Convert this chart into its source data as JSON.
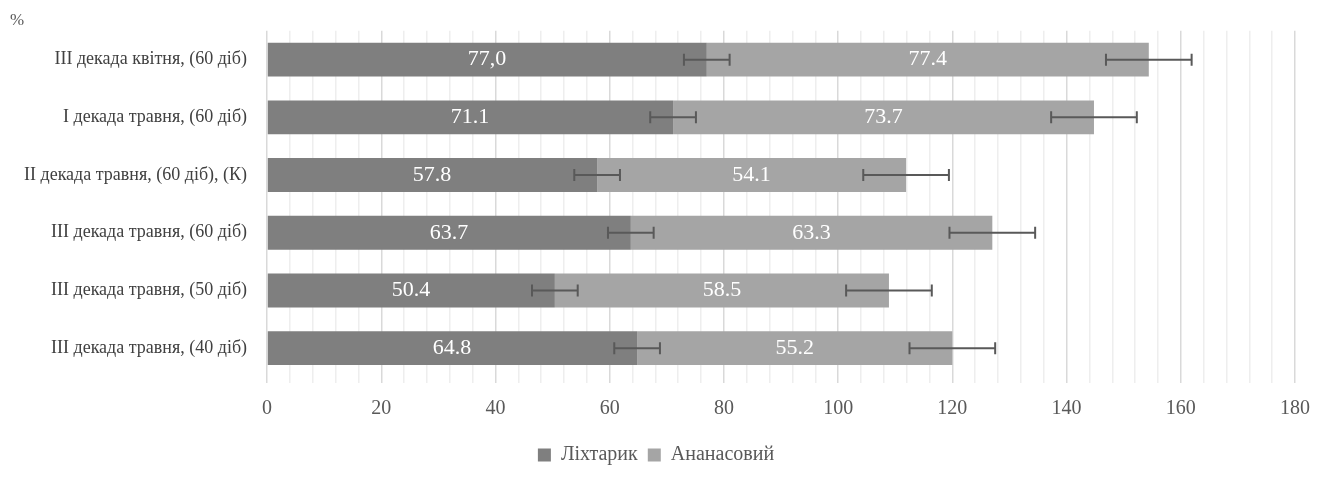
{
  "chart_data": {
    "type": "bar",
    "orientation": "horizontal",
    "stacked": true,
    "categories": [
      "III декада квітня, (60 діб)",
      "I декада травня, (60 діб)",
      "II декада травня, (60 діб), (К)",
      "III декада травня, (60 діб)",
      "III декада травня, (50 діб)",
      "III декада травня, (40 діб)"
    ],
    "series": [
      {
        "name": "Ліхтарик",
        "color": "#7f7f7f",
        "values": [
          77.0,
          71.1,
          57.8,
          63.7,
          50.4,
          64.8
        ],
        "value_labels": [
          "77,0",
          "71.1",
          "57.8",
          "63.7",
          "50.4",
          "64.8"
        ],
        "errors": [
          4,
          4,
          4,
          4,
          4,
          4
        ]
      },
      {
        "name": "Ананасовий",
        "color": "#a5a5a5",
        "values": [
          77.4,
          73.7,
          54.1,
          63.3,
          58.5,
          55.2
        ],
        "value_labels": [
          "77.4",
          "73.7",
          "54.1",
          "63.3",
          "58.5",
          "55.2"
        ],
        "errors": [
          7.5,
          7.5,
          7.5,
          7.5,
          7.5,
          7.5
        ]
      }
    ],
    "xlim": [
      0,
      180
    ],
    "xticks": [
      0,
      {
        "value": 4,
        "label": null
      },
      {
        "value": 8,
        "label": null
      },
      {
        "value": 12,
        "label": null
      },
      {
        "value": 16,
        "label": null
      },
      20,
      {
        "value": 24,
        "label": null
      },
      {
        "value": 28,
        "label": null
      },
      {
        "value": 32,
        "label": null
      },
      {
        "value": 36,
        "label": null
      },
      40,
      {
        "value": 44,
        "label": null
      },
      {
        "value": 48,
        "label": null
      },
      {
        "value": 52,
        "label": null
      },
      {
        "value": 56,
        "label": null
      },
      60,
      {
        "value": 64,
        "label": null
      },
      {
        "value": 68,
        "label": null
      },
      {
        "value": 72,
        "label": null
      },
      {
        "value": 76,
        "label": null
      },
      80,
      {
        "value": 84,
        "label": null
      },
      {
        "value": 88,
        "label": null
      },
      {
        "value": 92,
        "label": null
      },
      {
        "value": 96,
        "label": null
      },
      100,
      {
        "value": 104,
        "label": null
      },
      {
        "value": 108,
        "label": null
      },
      {
        "value": 112,
        "label": null
      },
      {
        "value": 116,
        "label": null
      },
      120,
      {
        "value": 124,
        "label": null
      },
      {
        "value": 128,
        "label": null
      },
      {
        "value": 132,
        "label": null
      },
      {
        "value": 136,
        "label": null
      },
      140,
      {
        "value": 144,
        "label": null
      },
      {
        "value": 148,
        "label": null
      },
      {
        "value": 152,
        "label": null
      },
      {
        "value": 156,
        "label": null
      },
      160,
      {
        "value": 164,
        "label": null
      },
      {
        "value": 168,
        "label": null
      },
      {
        "value": 172,
        "label": null
      },
      {
        "value": 176,
        "label": null
      },
      180
    ],
    "grid": "x",
    "legend": "bottom",
    "annotations": [
      "%"
    ]
  }
}
